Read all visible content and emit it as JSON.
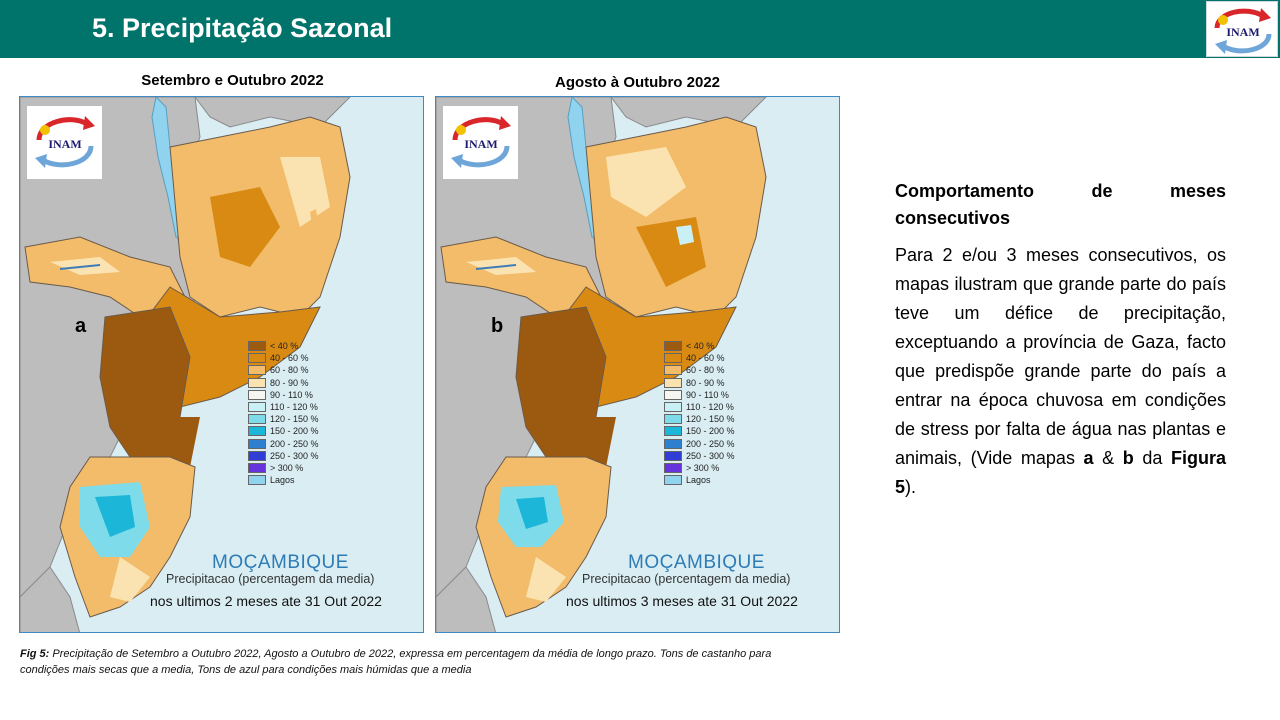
{
  "header": {
    "title": "5. Precipitação Sazonal",
    "logo_text": "INAM"
  },
  "maps": [
    {
      "title": "Setembro e Outubro  2022",
      "letter": "a",
      "country": "MOÇAMBIQUE",
      "subtitle": "Precipitacao (percentagem da media)",
      "period": "nos ultimos 2 meses ate 31 Out 2022"
    },
    {
      "title": "Agosto à Outubro 2022",
      "letter": "b",
      "country": "MOÇAMBIQUE",
      "subtitle": "Precipitacao (percentagem da media)",
      "period": "nos ultimos 3 meses ate 31 Out 2022"
    }
  ],
  "legend": [
    {
      "label": "< 40 %",
      "color": "#9c5a10"
    },
    {
      "label": "40 - 60 %",
      "color": "#d98a12"
    },
    {
      "label": "60 - 80 %",
      "color": "#f2bc6a"
    },
    {
      "label": "80 - 90 %",
      "color": "#fbe3b1"
    },
    {
      "label": "90 - 110 %",
      "color": "#f7f7f2"
    },
    {
      "label": "110 - 120 %",
      "color": "#c9f1f5"
    },
    {
      "label": "120 - 150 %",
      "color": "#7edbe9"
    },
    {
      "label": "150 - 200 %",
      "color": "#1bb6d8"
    },
    {
      "label": "200 - 250 %",
      "color": "#2d7fd0"
    },
    {
      "label": "250 - 300 %",
      "color": "#2f3fd6"
    },
    {
      "label": "> 300 %",
      "color": "#6633dd"
    },
    {
      "label": "Lagos",
      "color": "#8fd3ef"
    }
  ],
  "caption": {
    "lead": "Fig 5:",
    "text": " Precipitação de Setembro a Outubro 2022, Agosto a Outubro de 2022, expressa em percentagem da média de longo prazo. Tons de castanho para condições mais secas que a media, Tons de azul para condições mais húmidas que a media"
  },
  "side": {
    "heading_line1": "Comportamento de meses",
    "heading_line2": "consecutivos",
    "body_1": "Para 2 e/ou 3 meses consecutivos, os mapas ilustram que grande parte do país teve um défice de precipitação, exceptuando a província de Gaza, facto que predispõe grande parte do país a entrar na época chuvosa em condições de stress por falta de água nas plantas e animais, (Vide mapas ",
    "bold_a": "a",
    "amp": " & ",
    "bold_b": "b",
    "body_2": " da ",
    "bold_fig": "Figura 5",
    "body_3": ")."
  },
  "colors": {
    "header_bg": "#00746a",
    "sea": "#d9edf3",
    "land_neighbors": "#bdbdbd",
    "country_text": "#2d7cb6"
  }
}
